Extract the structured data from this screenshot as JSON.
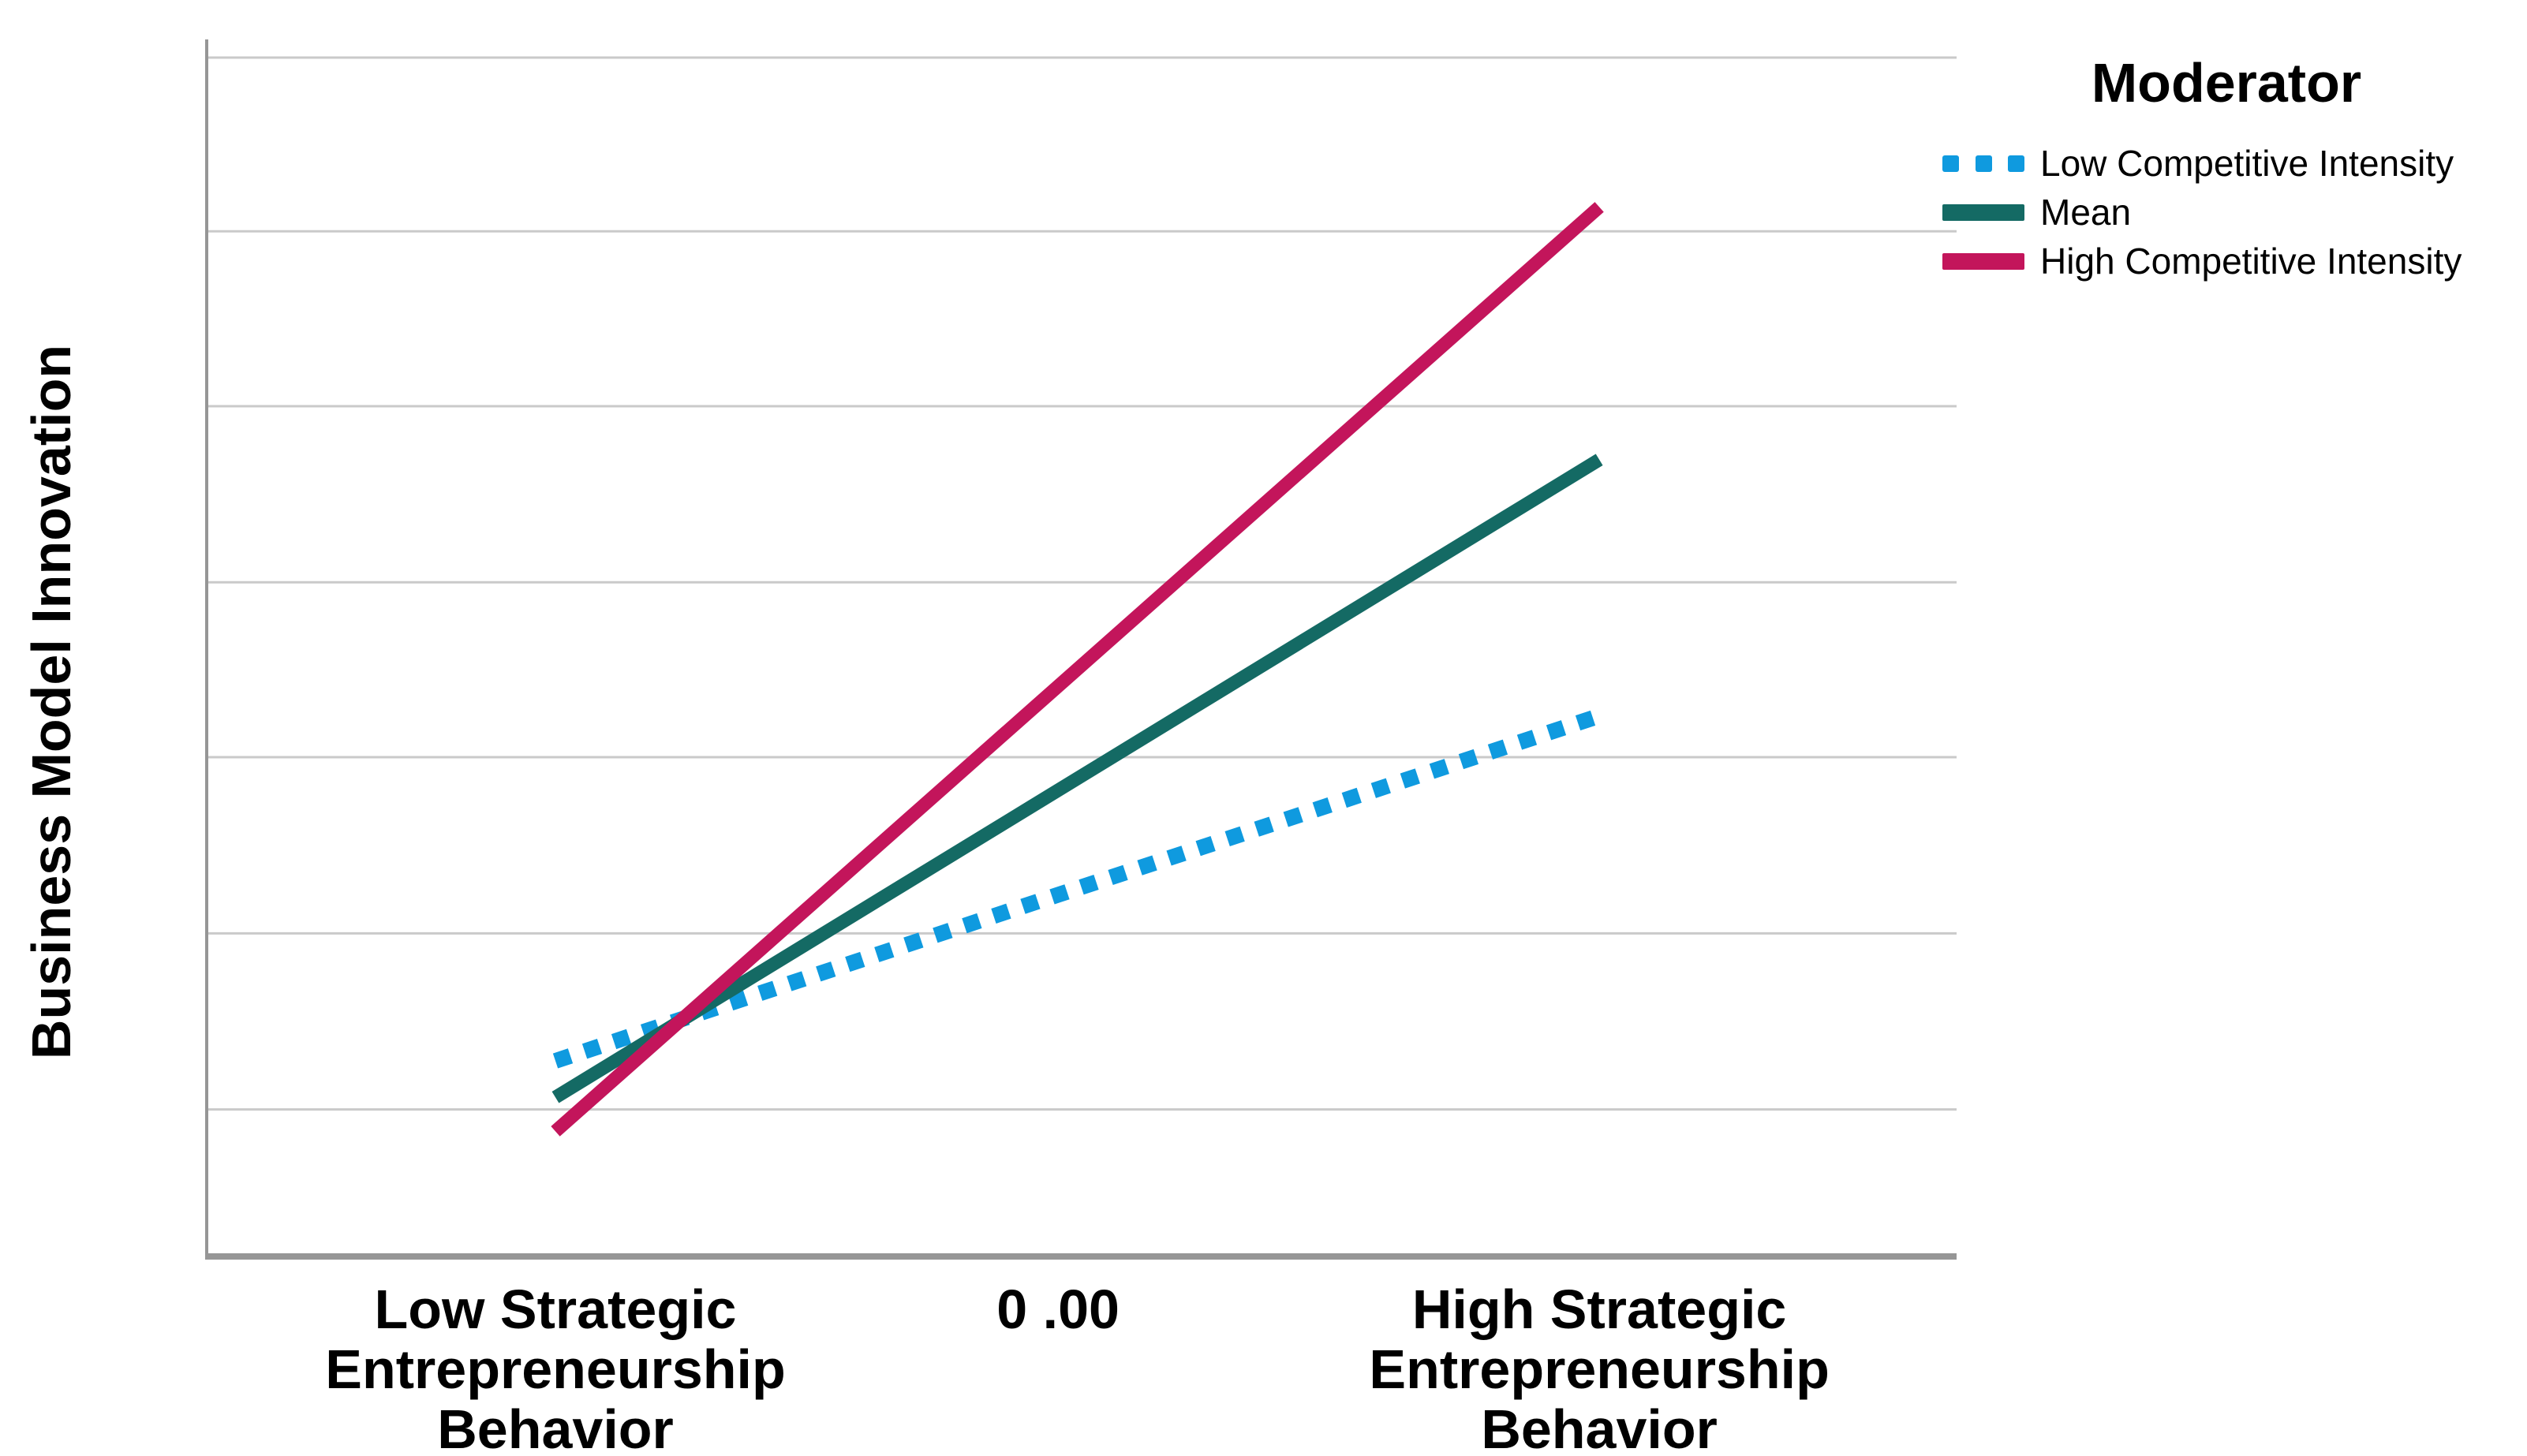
{
  "colors": {
    "background": "#FFFFFF",
    "gridline": "#CACACA",
    "y_axis_line": "#969696",
    "x_axis_line": "#969696",
    "text": "#000000"
  },
  "chart_data": {
    "type": "line",
    "title": "",
    "xlabel": "",
    "ylabel": "Business Model Innovation",
    "x_tick_labels": [
      "Low Strategic\nEntrepreneurship\nBehavior",
      "0 .00",
      "High Strategic\nEntrepreneurship\nBehavior"
    ],
    "x_tick_positions_pct": [
      20,
      48.7,
      79.6
    ],
    "y_axis_numeric_labels_visible": false,
    "gridlines_y_pct": [
      12.1,
      26.6,
      41.1,
      55.5,
      70.0,
      84.4,
      98.7
    ],
    "grid": "horizontal-only",
    "legend": {
      "title": "Moderator",
      "position": "outside-top-right"
    },
    "series": [
      {
        "name": "Low Competitive Intensity",
        "line_style": "dotted",
        "color": "#0F9ADF",
        "x_pct": [
          20,
          79.6
        ],
        "y_pct": [
          16.1,
          44.5
        ]
      },
      {
        "name": "Mean",
        "line_style": "solid",
        "color": "#146A64",
        "x_pct": [
          20,
          79.6
        ],
        "y_pct": [
          13.1,
          65.6
        ]
      },
      {
        "name": "High Competitive Intensity",
        "line_style": "solid",
        "color": "#C3155B",
        "x_pct": [
          20,
          79.6
        ],
        "y_pct": [
          10.3,
          86.4
        ]
      }
    ],
    "note": "Simple-slopes interaction plot; y axis shows no numeric tick labels. y_pct = percent of plot height above x axis, x_pct = percent of plot width."
  }
}
